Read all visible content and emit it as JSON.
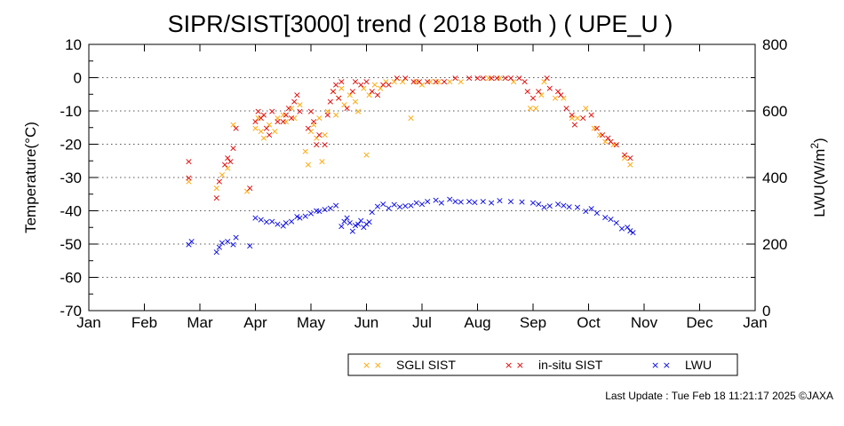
{
  "chart_data": {
    "type": "scatter",
    "title": "SIPR/SIST[3000] trend ( 2018 Both ) ( UPE_U )",
    "ylabel": "Temperature(°C)",
    "y2label_main": "LWU(W/m",
    "y2label_sup": "2",
    "y2label_end": ")",
    "ylim": [
      -70,
      10
    ],
    "y2lim": [
      0,
      800
    ],
    "xlim": [
      0,
      12
    ],
    "x_ticks": [
      "Jan",
      "Feb",
      "Mar",
      "Apr",
      "May",
      "Jun",
      "Jul",
      "Aug",
      "Sep",
      "Oct",
      "Nov",
      "Dec",
      "Jan"
    ],
    "y_ticks": [
      "10",
      "0",
      "-10",
      "-20",
      "-30",
      "-40",
      "-50",
      "-60",
      "-70"
    ],
    "y2_ticks": [
      "800",
      "600",
      "400",
      "200",
      "0"
    ],
    "grid": "horizontal dotted",
    "legend_position": "bottom-right",
    "series": [
      {
        "name": "SGLI SIST",
        "color": "#FFA500",
        "axis": "left",
        "marker": "x",
        "points": [
          [
            1.8,
            -31
          ],
          [
            2.3,
            -33
          ],
          [
            2.4,
            -29
          ],
          [
            2.5,
            -27
          ],
          [
            2.6,
            -14
          ],
          [
            2.85,
            -34
          ],
          [
            3.0,
            -15
          ],
          [
            3.05,
            -12
          ],
          [
            3.1,
            -16
          ],
          [
            3.15,
            -18
          ],
          [
            3.25,
            -14
          ],
          [
            3.35,
            -16
          ],
          [
            3.4,
            -12
          ],
          [
            3.5,
            -11
          ],
          [
            3.55,
            -13
          ],
          [
            3.65,
            -9
          ],
          [
            3.7,
            -12
          ],
          [
            3.8,
            -8
          ],
          [
            3.9,
            -22
          ],
          [
            3.95,
            -26
          ],
          [
            4.0,
            -16
          ],
          [
            4.05,
            -14
          ],
          [
            4.1,
            -18
          ],
          [
            4.15,
            -12
          ],
          [
            4.2,
            -25
          ],
          [
            4.25,
            -17
          ],
          [
            4.3,
            -10
          ],
          [
            4.4,
            -4
          ],
          [
            4.45,
            -11
          ],
          [
            4.5,
            -6
          ],
          [
            4.55,
            -3
          ],
          [
            4.6,
            -8
          ],
          [
            4.7,
            -5
          ],
          [
            4.8,
            -7
          ],
          [
            4.85,
            -10
          ],
          [
            4.95,
            -3
          ],
          [
            5.0,
            -23
          ],
          [
            5.05,
            -5
          ],
          [
            5.15,
            -2
          ],
          [
            5.25,
            -3
          ],
          [
            5.35,
            -1
          ],
          [
            5.5,
            -1
          ],
          [
            5.65,
            -1
          ],
          [
            5.8,
            -12
          ],
          [
            5.9,
            -1
          ],
          [
            6.0,
            -2
          ],
          [
            6.15,
            -1
          ],
          [
            6.3,
            -1
          ],
          [
            6.5,
            -1
          ],
          [
            6.7,
            -1
          ],
          [
            7.2,
            0
          ],
          [
            7.4,
            0
          ],
          [
            7.65,
            -1
          ],
          [
            7.95,
            -9
          ],
          [
            8.05,
            -9
          ],
          [
            8.15,
            -5
          ],
          [
            8.2,
            -1
          ],
          [
            8.4,
            -6
          ],
          [
            8.55,
            -6
          ],
          [
            8.7,
            -12
          ],
          [
            8.8,
            -12
          ],
          [
            8.95,
            -9
          ],
          [
            9.1,
            -15
          ],
          [
            9.2,
            -17
          ],
          [
            9.3,
            -19
          ],
          [
            9.45,
            -20
          ],
          [
            9.65,
            -24
          ],
          [
            9.75,
            -26
          ]
        ]
      },
      {
        "name": "in-situ SIST",
        "color": "#E00000",
        "axis": "left",
        "marker": "x",
        "points": [
          [
            1.8,
            -25
          ],
          [
            1.8,
            -30
          ],
          [
            2.3,
            -36
          ],
          [
            2.35,
            -31
          ],
          [
            2.45,
            -26
          ],
          [
            2.5,
            -24
          ],
          [
            2.55,
            -25
          ],
          [
            2.6,
            -21
          ],
          [
            2.65,
            -15
          ],
          [
            2.9,
            -33
          ],
          [
            3.0,
            -13
          ],
          [
            3.05,
            -10
          ],
          [
            3.1,
            -12
          ],
          [
            3.15,
            -11
          ],
          [
            3.2,
            -15
          ],
          [
            3.25,
            -17
          ],
          [
            3.3,
            -10
          ],
          [
            3.4,
            -13
          ],
          [
            3.5,
            -13
          ],
          [
            3.55,
            -11
          ],
          [
            3.6,
            -9
          ],
          [
            3.65,
            -12
          ],
          [
            3.7,
            -7
          ],
          [
            3.75,
            -5
          ],
          [
            3.8,
            -10
          ],
          [
            3.95,
            -15
          ],
          [
            4.0,
            -10
          ],
          [
            4.05,
            -13
          ],
          [
            4.1,
            -20
          ],
          [
            4.15,
            -17
          ],
          [
            4.25,
            -20
          ],
          [
            4.3,
            -11
          ],
          [
            4.35,
            -7
          ],
          [
            4.4,
            -4
          ],
          [
            4.45,
            -2
          ],
          [
            4.5,
            -6
          ],
          [
            4.55,
            -1
          ],
          [
            4.65,
            -9
          ],
          [
            4.75,
            -4
          ],
          [
            4.8,
            -1
          ],
          [
            4.9,
            -2
          ],
          [
            5.0,
            -1
          ],
          [
            5.1,
            -4
          ],
          [
            5.2,
            -5
          ],
          [
            5.3,
            -2
          ],
          [
            5.4,
            -2
          ],
          [
            5.55,
            0
          ],
          [
            5.7,
            0
          ],
          [
            5.85,
            -1
          ],
          [
            5.95,
            -1
          ],
          [
            6.1,
            -1
          ],
          [
            6.25,
            -1
          ],
          [
            6.4,
            -1
          ],
          [
            6.6,
            0
          ],
          [
            6.85,
            0
          ],
          [
            7.0,
            0
          ],
          [
            7.1,
            0
          ],
          [
            7.25,
            0
          ],
          [
            7.35,
            0
          ],
          [
            7.5,
            0
          ],
          [
            7.6,
            0
          ],
          [
            7.75,
            0
          ],
          [
            7.85,
            -1
          ],
          [
            7.9,
            -4
          ],
          [
            8.0,
            -6
          ],
          [
            8.1,
            -4
          ],
          [
            8.25,
            0
          ],
          [
            8.3,
            -3
          ],
          [
            8.45,
            -4
          ],
          [
            8.5,
            -5
          ],
          [
            8.6,
            -9
          ],
          [
            8.7,
            -11
          ],
          [
            8.75,
            -14
          ],
          [
            8.9,
            -12
          ],
          [
            9.05,
            -11
          ],
          [
            9.15,
            -15
          ],
          [
            9.25,
            -17
          ],
          [
            9.35,
            -18
          ],
          [
            9.4,
            -19
          ],
          [
            9.5,
            -20
          ],
          [
            9.65,
            -23
          ],
          [
            9.75,
            -24
          ]
        ]
      },
      {
        "name": "LWU",
        "color": "#0000E0",
        "axis": "right",
        "marker": "x",
        "points": [
          [
            1.8,
            200
          ],
          [
            1.85,
            210
          ],
          [
            2.3,
            178
          ],
          [
            2.35,
            192
          ],
          [
            2.4,
            205
          ],
          [
            2.5,
            210
          ],
          [
            2.6,
            200
          ],
          [
            2.65,
            222
          ],
          [
            2.9,
            196
          ],
          [
            3.0,
            280
          ],
          [
            3.1,
            275
          ],
          [
            3.2,
            268
          ],
          [
            3.3,
            270
          ],
          [
            3.4,
            262
          ],
          [
            3.5,
            256
          ],
          [
            3.55,
            265
          ],
          [
            3.65,
            270
          ],
          [
            3.75,
            284
          ],
          [
            3.8,
            280
          ],
          [
            3.9,
            286
          ],
          [
            4.0,
            294
          ],
          [
            4.1,
            302
          ],
          [
            4.15,
            300
          ],
          [
            4.25,
            305
          ],
          [
            4.35,
            310
          ],
          [
            4.45,
            318
          ],
          [
            4.55,
            255
          ],
          [
            4.6,
            270
          ],
          [
            4.65,
            280
          ],
          [
            4.7,
            265
          ],
          [
            4.75,
            240
          ],
          [
            4.8,
            258
          ],
          [
            4.85,
            262
          ],
          [
            4.9,
            272
          ],
          [
            4.95,
            252
          ],
          [
            5.0,
            262
          ],
          [
            5.05,
            268
          ],
          [
            5.1,
            298
          ],
          [
            5.2,
            315
          ],
          [
            5.3,
            322
          ],
          [
            5.4,
            310
          ],
          [
            5.5,
            320
          ],
          [
            5.6,
            314
          ],
          [
            5.7,
            316
          ],
          [
            5.8,
            318
          ],
          [
            5.9,
            325
          ],
          [
            6.0,
            322
          ],
          [
            6.1,
            330
          ],
          [
            6.25,
            334
          ],
          [
            6.35,
            325
          ],
          [
            6.5,
            336
          ],
          [
            6.6,
            330
          ],
          [
            6.7,
            328
          ],
          [
            6.85,
            330
          ],
          [
            6.95,
            327
          ],
          [
            7.1,
            330
          ],
          [
            7.25,
            326
          ],
          [
            7.4,
            332
          ],
          [
            7.6,
            330
          ],
          [
            7.8,
            328
          ],
          [
            8.0,
            325
          ],
          [
            8.1,
            322
          ],
          [
            8.2,
            312
          ],
          [
            8.3,
            316
          ],
          [
            8.45,
            322
          ],
          [
            8.55,
            318
          ],
          [
            8.65,
            314
          ],
          [
            8.8,
            312
          ],
          [
            8.95,
            300
          ],
          [
            9.05,
            308
          ],
          [
            9.15,
            295
          ],
          [
            9.3,
            282
          ],
          [
            9.4,
            276
          ],
          [
            9.5,
            266
          ],
          [
            9.6,
            248
          ],
          [
            9.7,
            252
          ],
          [
            9.75,
            242
          ],
          [
            9.8,
            236
          ]
        ]
      }
    ]
  },
  "footer": {
    "text": "Last Update : Tue Feb 18 11:21:17 2025  ©JAXA"
  }
}
